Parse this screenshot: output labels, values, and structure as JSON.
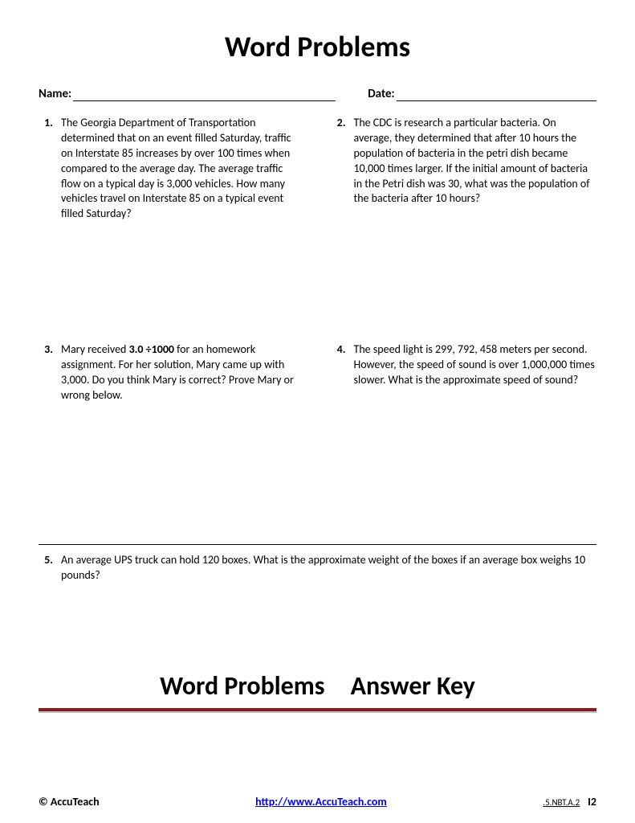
{
  "title": "Word Problems",
  "name_label": "Name:",
  "date_label": "Date:",
  "problems": [
    {
      "n": "1.",
      "text": "The Georgia Department of Transportation determined that on an event filled Saturday, traffic on Interstate 85 increases by over 100 times when compared to the average day. The average traffic flow on a typical day is 3,000 vehicles. How many vehicles travel on Interstate 85 on a typical event filled Saturday?"
    },
    {
      "n": "2.",
      "text": "The CDC is research a particular bacteria. On average, they determined that after 10 hours the population of bacteria in the petri dish became 10,000 times larger. If the initial amount of bacteria in the Petri dish was 30, what was the population of the bacteria after 10 hours?"
    },
    {
      "n": "3.",
      "pre": "Mary received ",
      "bold": "3.0 ÷1000",
      "post": " for an homework assignment. For her solution, Mary came up with 3,000. Do you think Mary is correct? Prove Mary or wrong below."
    },
    {
      "n": "4.",
      "text": "The speed light is 299, 792, 458 meters per second. However, the speed of sound is over 1,000,000 times slower. What is the approximate speed of sound?"
    }
  ],
  "problem5": {
    "n": "5.",
    "text": "An average UPS truck can hold 120 boxes. What is the approximate weight of the boxes if an average box weighs 10 pounds?"
  },
  "answer_title": "Word Problems Answer Key",
  "footer": {
    "copyright": "© AccuTeach",
    "url": "http://www.AccuTeach.com",
    "standard": ".5.NBT.A.2",
    "page": "I2"
  }
}
